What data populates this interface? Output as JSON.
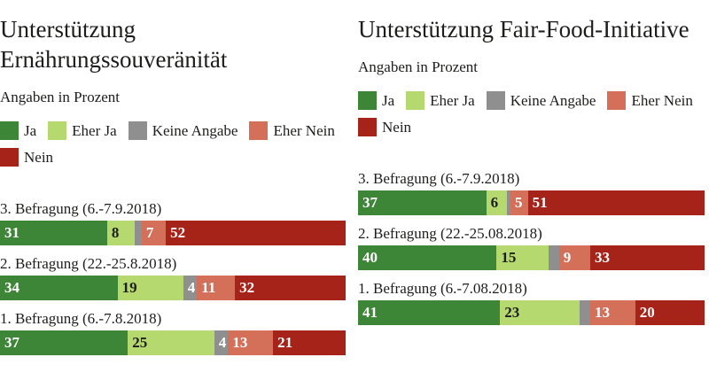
{
  "legend": {
    "items": [
      {
        "label": "Ja",
        "color": "#3d8637",
        "label_text_color": "#ffffff"
      },
      {
        "label": "Eher Ja",
        "color": "#b5d96e",
        "label_text_color": "#1d1d1b"
      },
      {
        "label": "Keine Angabe",
        "color": "#8f8f8f",
        "label_text_color": "#ffffff"
      },
      {
        "label": "Eher Nein",
        "color": "#d4705a",
        "label_text_color": "#ffffff"
      },
      {
        "label": "Nein",
        "color": "#a62319",
        "label_text_color": "#ffffff"
      }
    ]
  },
  "chart_data": [
    {
      "type": "bar",
      "variant": "horizontal-stacked-100",
      "title": "Unterstützung Ernährungssouveränität",
      "subtitle": "Angaben in Prozent",
      "unit": "percent",
      "xlabel": "",
      "ylabel": "",
      "xlim": [
        0,
        100
      ],
      "grid": false,
      "legend_position": "top",
      "categories": [
        "3. Befragung (6.-7.9.2018)",
        "2. Befragung (22.-25.8.2018)",
        "1. Befragung (6.-7.8.2018)"
      ],
      "series": [
        {
          "name": "Ja",
          "values": [
            31,
            34,
            37
          ]
        },
        {
          "name": "Eher Ja",
          "values": [
            8,
            19,
            25
          ]
        },
        {
          "name": "Keine Angabe",
          "values": [
            2,
            4,
            4
          ]
        },
        {
          "name": "Eher Nein",
          "values": [
            7,
            11,
            13
          ]
        },
        {
          "name": "Nein",
          "values": [
            52,
            32,
            21
          ]
        }
      ]
    },
    {
      "type": "bar",
      "variant": "horizontal-stacked-100",
      "title": "Unterstützung Fair-Food-Initiative",
      "subtitle": "Angaben in Prozent",
      "unit": "percent",
      "xlabel": "",
      "ylabel": "",
      "xlim": [
        0,
        100
      ],
      "grid": false,
      "legend_position": "top",
      "categories": [
        "3. Befragung (6.-7.9.2018)",
        "2. Befragung (22.-25.08.2018)",
        "1. Befragung (6.-7.08.2018)"
      ],
      "series": [
        {
          "name": "Ja",
          "values": [
            37,
            40,
            41
          ]
        },
        {
          "name": "Eher Ja",
          "values": [
            6,
            15,
            23
          ]
        },
        {
          "name": "Keine Angabe",
          "values": [
            1,
            3,
            3
          ]
        },
        {
          "name": "Eher Nein",
          "values": [
            5,
            9,
            13
          ]
        },
        {
          "name": "Nein",
          "values": [
            51,
            33,
            20
          ]
        }
      ]
    }
  ]
}
